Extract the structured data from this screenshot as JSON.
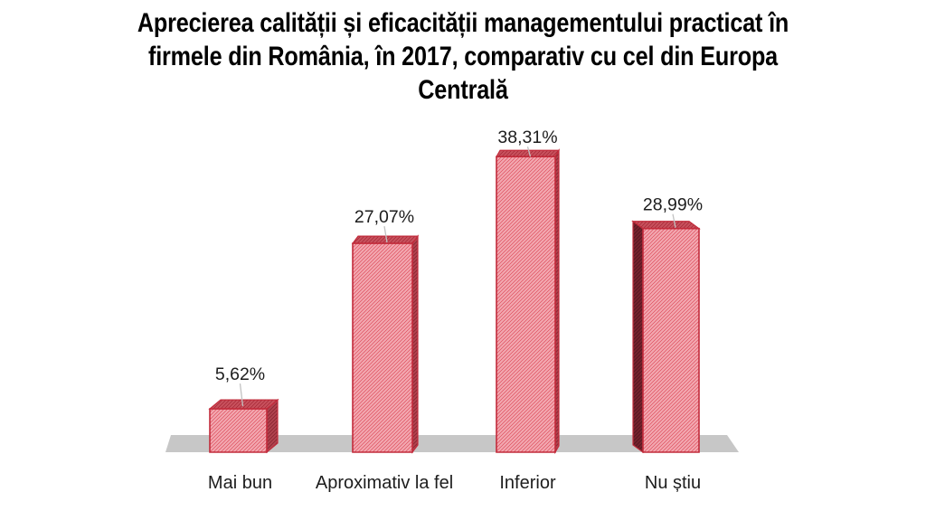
{
  "chart_data": {
    "type": "bar",
    "style": "3d-column-crosshatched",
    "title": "Aprecierea calității și eficacității managementului practicat în firmele din România, în 2017, comparativ cu cel din Europa Centrală",
    "title_lines": [
      "Aprecierea calității și eficacității managementului practicat în",
      "firmele din România, în 2017, comparativ cu cel din Europa",
      "Centrală"
    ],
    "categories": [
      "Mai bun",
      "Aproximativ la fel",
      "Inferior",
      "Nu știu"
    ],
    "values": [
      5.62,
      27.07,
      38.31,
      28.99
    ],
    "points": [
      {
        "category": "Mai bun",
        "value": 5.62,
        "value_label": "5,62%"
      },
      {
        "category": "Aproximativ la fel",
        "value": 27.07,
        "value_label": "27,07%"
      },
      {
        "category": "Inferior",
        "value": 38.31,
        "value_label": "38,31%"
      },
      {
        "category": "Nu știu",
        "value": 28.99,
        "value_label": "28,99%"
      }
    ],
    "unit": "%",
    "xlabel": "",
    "ylabel": "",
    "ylim": [
      0,
      40
    ],
    "grid": false,
    "legend": null,
    "axes_visible": false,
    "colors": {
      "bar_fill": "#f8bcc3",
      "bar_hatch": "#e15b69",
      "bar_hatch_light": "#ef9aa3",
      "bar_border": "#c22b3b",
      "bar_top_fill": "#d05a66",
      "bar_top_hatch": "#a92d3a",
      "bar_side_fill": "#b24450",
      "bar_side_hatch": "#8c2733",
      "bar_side_dark_fill": "#76232e",
      "bar_side_dark_hatch": "#551520",
      "floor": "#c7c7c7",
      "leader_line": "#c2c2c2",
      "label_text": "#1d1d1d",
      "title_text": "#000000",
      "background": "#ffffff"
    }
  }
}
